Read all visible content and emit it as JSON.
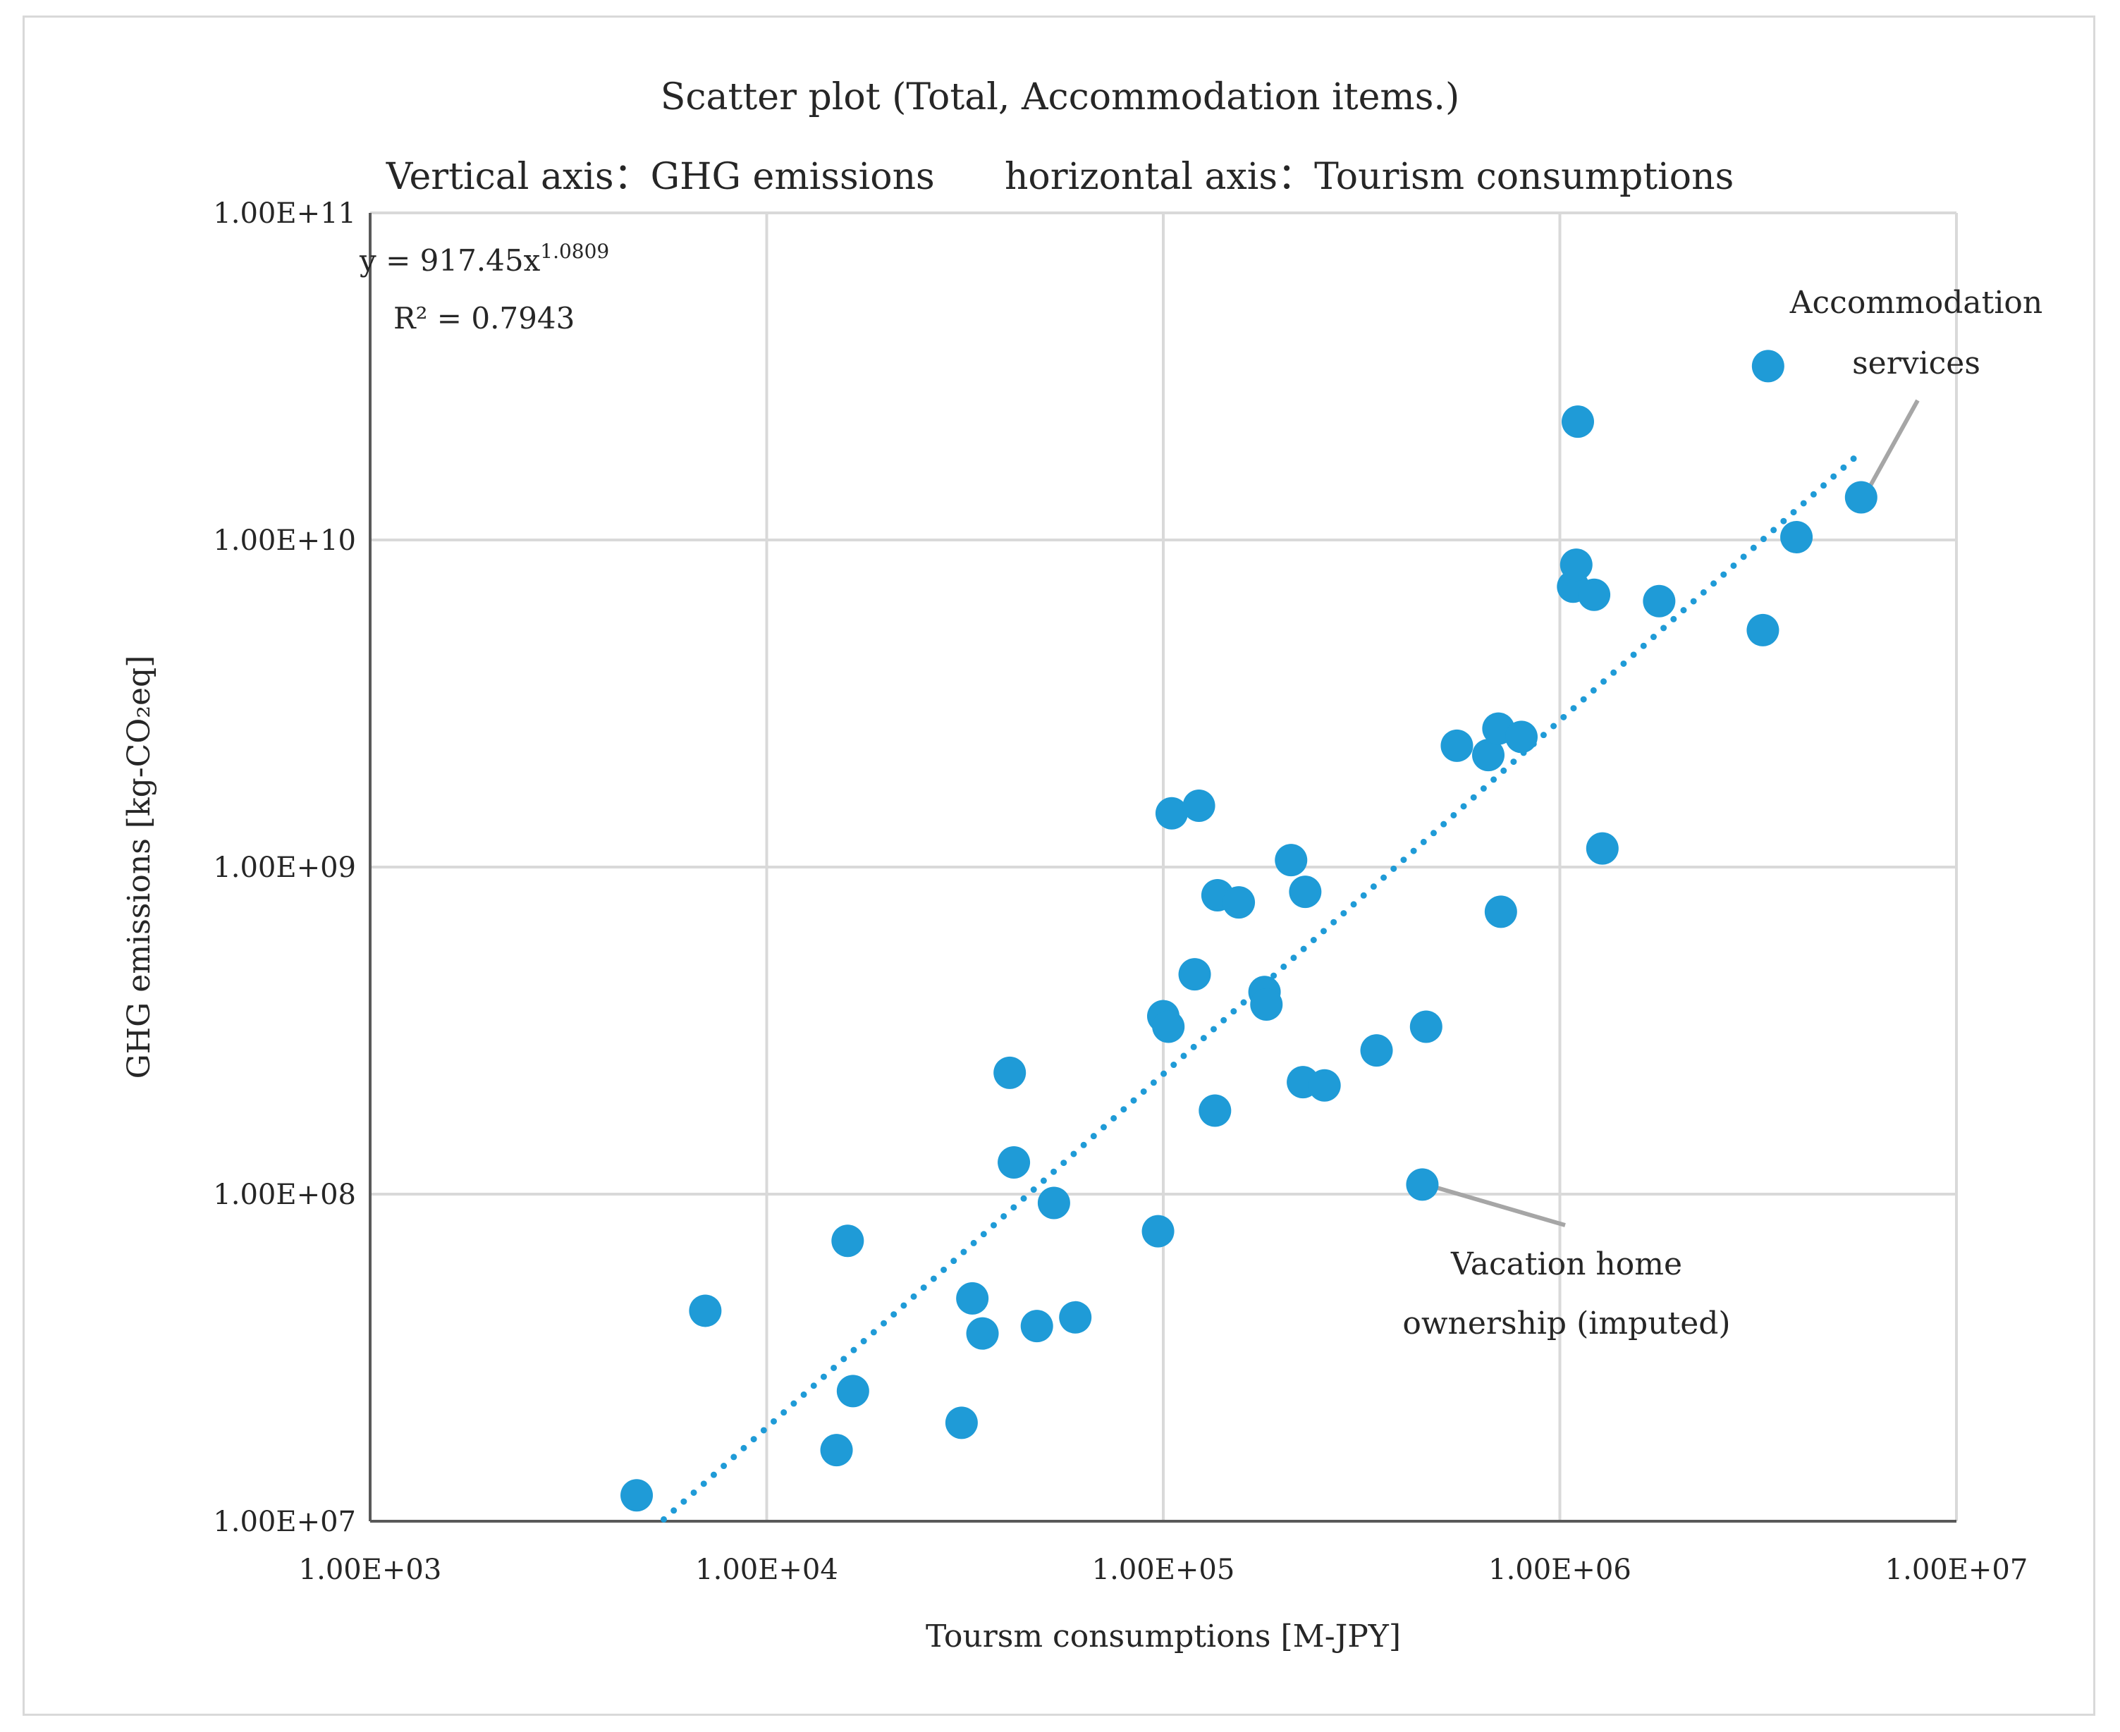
{
  "chart_data": {
    "type": "scatter",
    "title_line1": "Scatter plot (Total, Accommodation items.)",
    "title_line2_left": "Vertical axis：GHG emissions",
    "title_line2_right": "horizontal axis：Tourism consumptions",
    "xlabel": "Toursm consumptions [M-JPY]",
    "ylabel": "GHG emissions [kg-CO₂eq]",
    "xscale": "log",
    "yscale": "log",
    "xlim": [
      1000,
      10000000
    ],
    "ylim": [
      10000000,
      100000000000
    ],
    "x_tick_values": [
      1000,
      10000,
      100000,
      1000000,
      10000000
    ],
    "x_tick_labels": [
      "1.00E+03",
      "1.00E+04",
      "1.00E+05",
      "1.00E+06",
      "1.00E+07"
    ],
    "y_tick_values": [
      10000000,
      100000000,
      1000000000,
      10000000000,
      100000000000
    ],
    "y_tick_labels": [
      "1.00E+07",
      "1.00E+08",
      "1.00E+09",
      "1.00E+10",
      "1.00E+11"
    ],
    "grid": true,
    "marker_color": "#1f9bd7",
    "trend_color": "#1f9bd7",
    "trendline": {
      "type": "power",
      "coefficient": 917.45,
      "exponent": 1.0809,
      "x_range": [
        5500,
        5700000
      ],
      "equation_prefix": "y = 917.45x",
      "equation_exponent": "1.0809",
      "r_squared_label": "R² = 0.7943"
    },
    "points": [
      {
        "x": 4700,
        "y": 12000000
      },
      {
        "x": 7000,
        "y": 44000000
      },
      {
        "x": 15000,
        "y": 16500000
      },
      {
        "x": 16000,
        "y": 72000000
      },
      {
        "x": 16500,
        "y": 25000000
      },
      {
        "x": 31000,
        "y": 20000000
      },
      {
        "x": 33000,
        "y": 48000000
      },
      {
        "x": 35000,
        "y": 37500000
      },
      {
        "x": 41000,
        "y": 235000000
      },
      {
        "x": 42000,
        "y": 125000000
      },
      {
        "x": 48000,
        "y": 39500000
      },
      {
        "x": 53000,
        "y": 94000000
      },
      {
        "x": 60000,
        "y": 42000000
      },
      {
        "x": 97000,
        "y": 77000000
      },
      {
        "x": 100000,
        "y": 350000000
      },
      {
        "x": 103000,
        "y": 325000000
      },
      {
        "x": 105000,
        "y": 1460000000
      },
      {
        "x": 120000,
        "y": 470000000
      },
      {
        "x": 123000,
        "y": 1540000000
      },
      {
        "x": 135000,
        "y": 180000000
      },
      {
        "x": 137000,
        "y": 820000000
      },
      {
        "x": 155000,
        "y": 780000000
      },
      {
        "x": 180000,
        "y": 415000000
      },
      {
        "x": 182000,
        "y": 380000000
      },
      {
        "x": 210000,
        "y": 1050000000
      },
      {
        "x": 225000,
        "y": 220000000
      },
      {
        "x": 228000,
        "y": 840000000
      },
      {
        "x": 255000,
        "y": 215000000
      },
      {
        "x": 345000,
        "y": 275000000
      },
      {
        "x": 450000,
        "y": 107000000
      },
      {
        "x": 460000,
        "y": 325000000
      },
      {
        "x": 550000,
        "y": 2350000000
      },
      {
        "x": 660000,
        "y": 2200000000
      },
      {
        "x": 700000,
        "y": 2650000000
      },
      {
        "x": 710000,
        "y": 730000000
      },
      {
        "x": 800000,
        "y": 2500000000
      },
      {
        "x": 1080000,
        "y": 7200000000
      },
      {
        "x": 1100000,
        "y": 8400000000
      },
      {
        "x": 1110000,
        "y": 23000000000
      },
      {
        "x": 1220000,
        "y": 6800000000
      },
      {
        "x": 1280000,
        "y": 1140000000
      },
      {
        "x": 1780000,
        "y": 6500000000
      },
      {
        "x": 3250000,
        "y": 5300000000
      },
      {
        "x": 3350000,
        "y": 34000000000
      },
      {
        "x": 3950000,
        "y": 10200000000
      },
      {
        "x": 5750000,
        "y": 13500000000
      }
    ],
    "annotations": [
      {
        "id": "accommodation",
        "lines": [
          "Accommodation",
          "services"
        ],
        "x": 5750000,
        "y": 13500000000
      },
      {
        "id": "vacation",
        "lines": [
          "Vacation home",
          "ownership (imputed)"
        ],
        "x": 450000,
        "y": 107000000
      }
    ],
    "annotation_line_color": "#a6a6a6"
  }
}
